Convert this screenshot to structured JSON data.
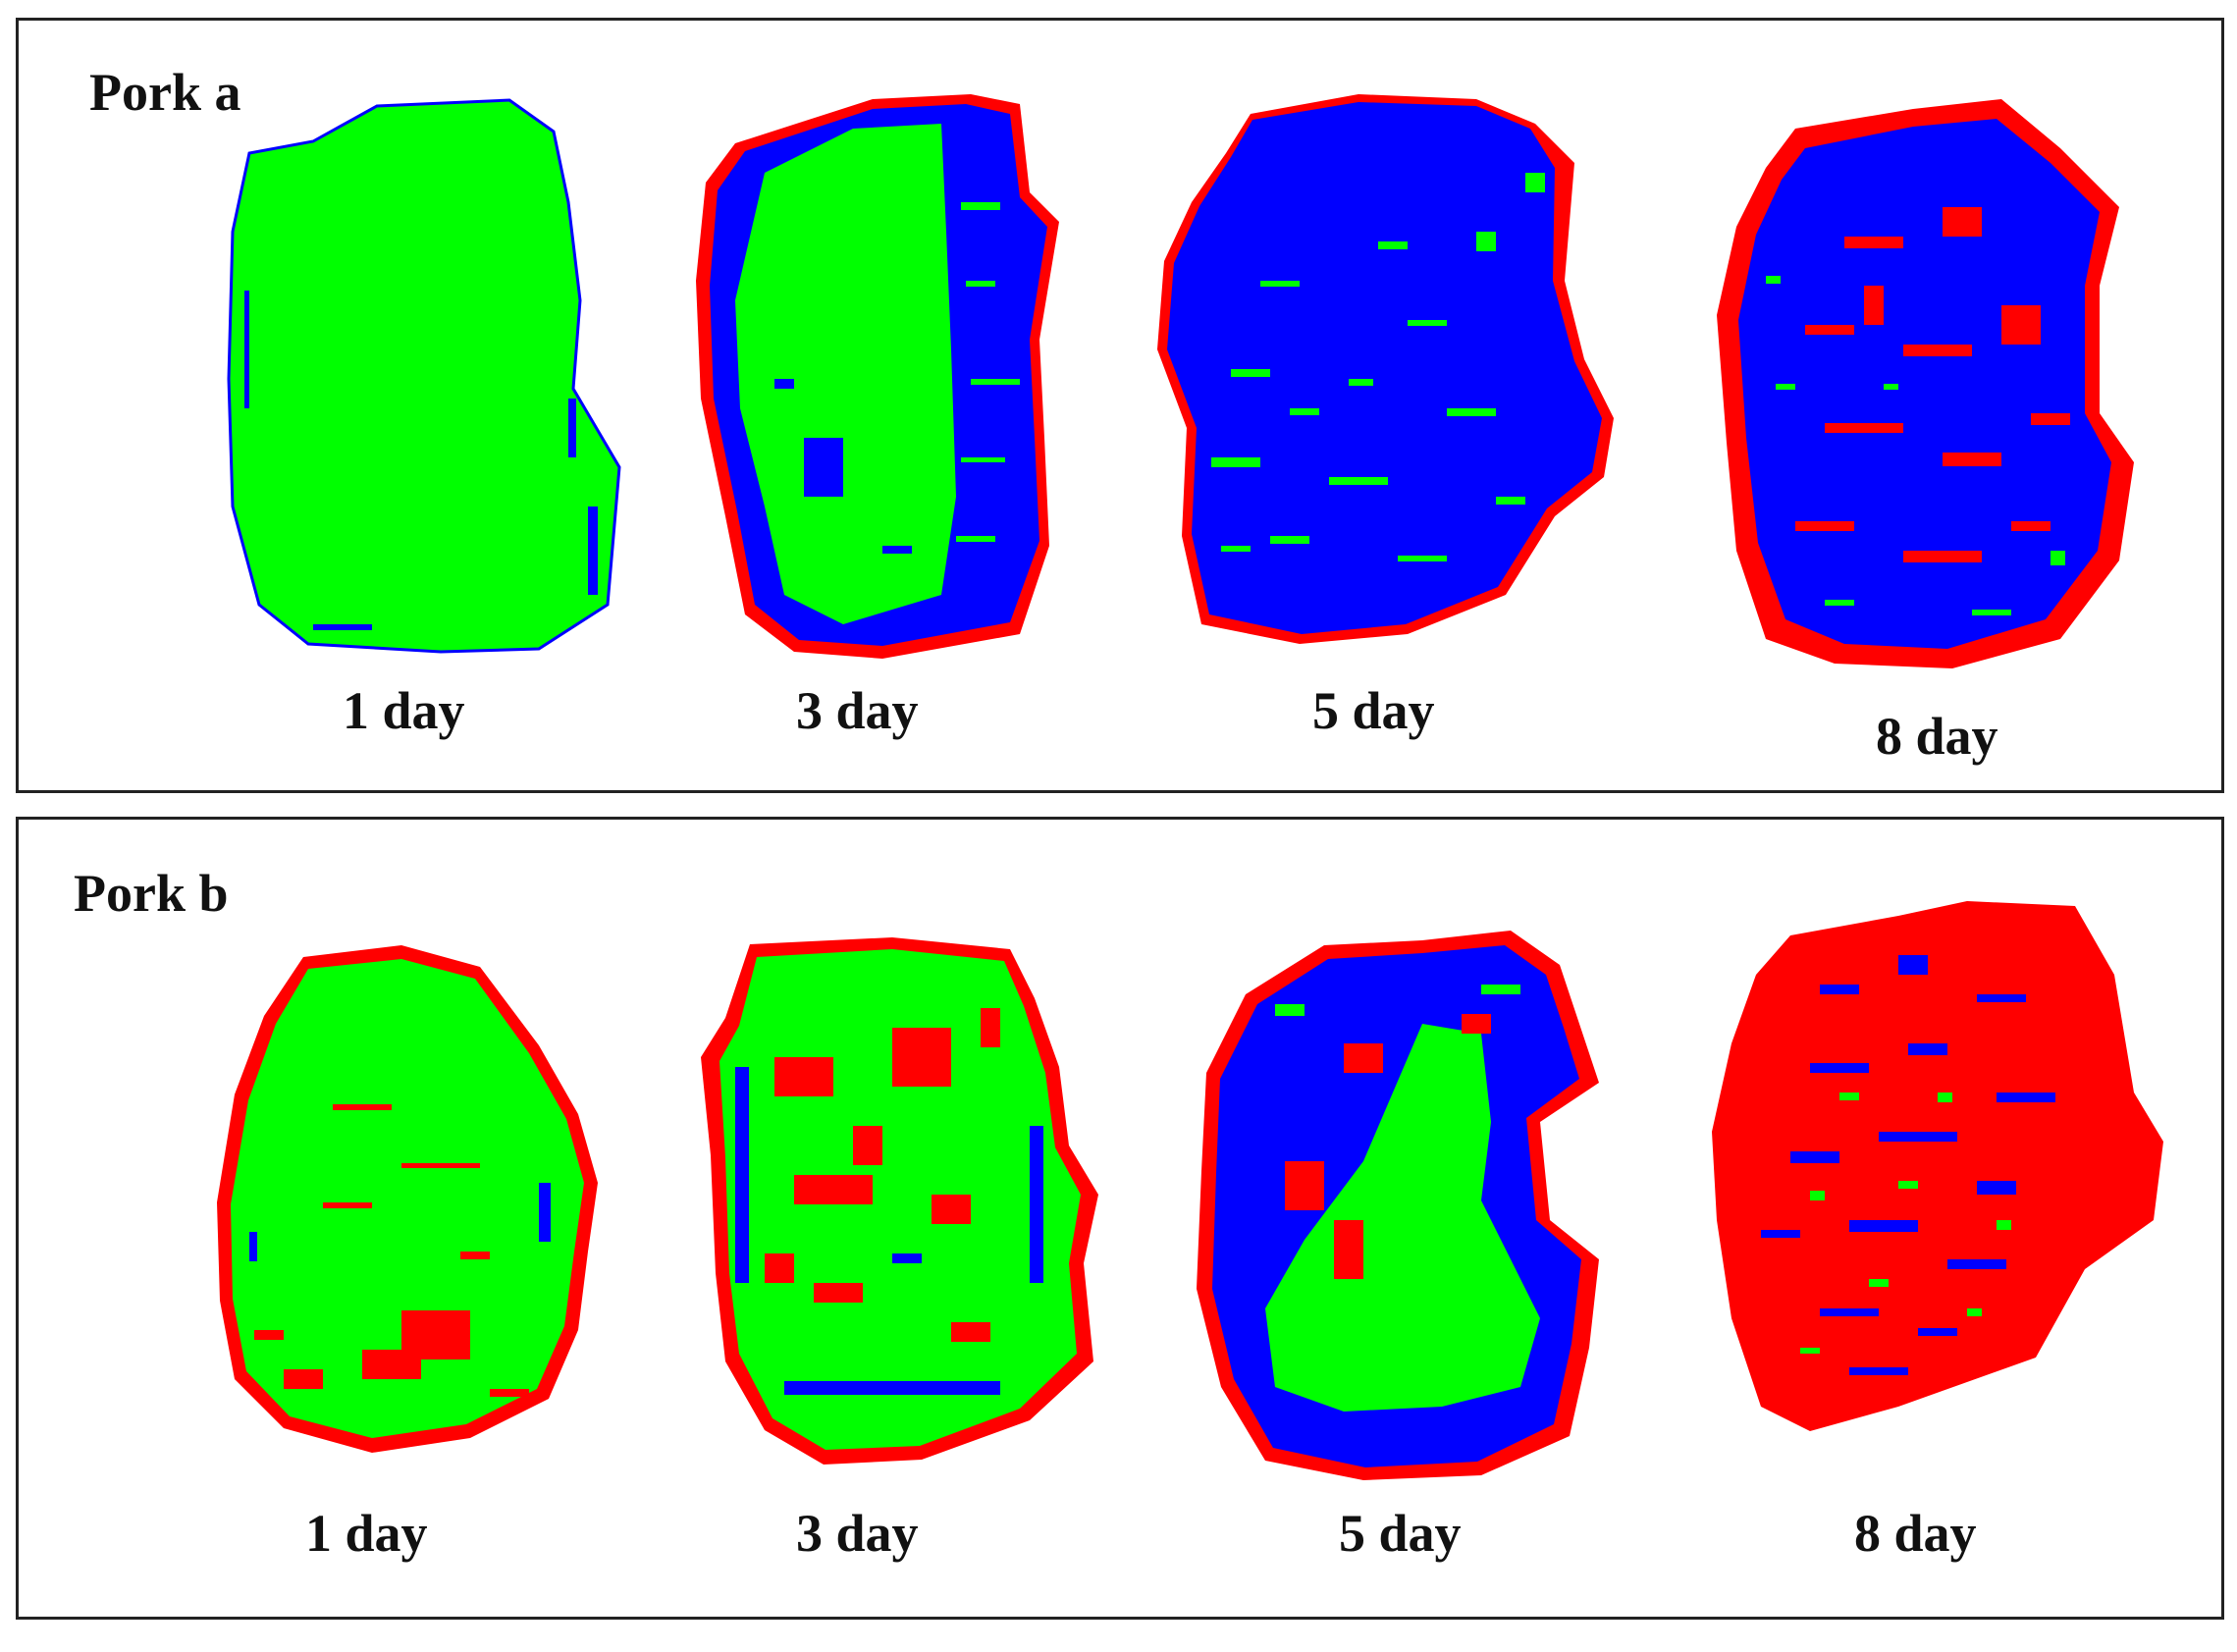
{
  "colors": {
    "green": "#00ff00",
    "blue": "#0000ff",
    "red": "#ff0000",
    "border": "#222222"
  },
  "panels": [
    {
      "title": "Pork a",
      "samples": [
        {
          "label": "1 day",
          "fill": "green",
          "rim": "none",
          "spots": "blue-sparse"
        },
        {
          "label": "3 day",
          "fill": "green",
          "rim": "red",
          "spots": "blue"
        },
        {
          "label": "5 day",
          "fill": "blue",
          "rim": "red",
          "spots": "green"
        },
        {
          "label": "8 day",
          "fill": "blue",
          "rim": "red",
          "spots": "red-green"
        }
      ]
    },
    {
      "title": "Pork b",
      "samples": [
        {
          "label": "1 day",
          "fill": "green",
          "rim": "red",
          "spots": "red"
        },
        {
          "label": "3 day",
          "fill": "green",
          "rim": "red",
          "spots": "red-blue"
        },
        {
          "label": "5 day",
          "fill": "blue",
          "rim": "red",
          "spots": "green"
        },
        {
          "label": "8 day",
          "fill": "red",
          "rim": "red",
          "spots": "blue-green"
        }
      ]
    }
  ]
}
